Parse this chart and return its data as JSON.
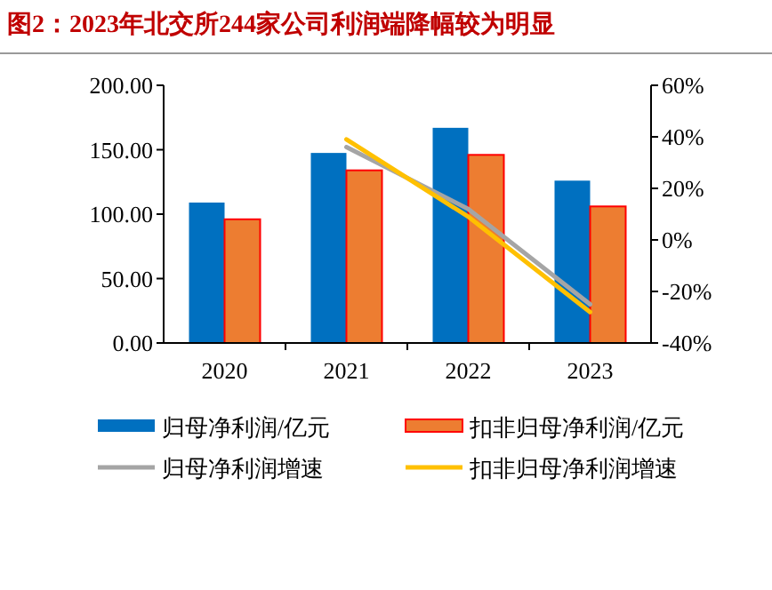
{
  "chart_data": {
    "type": "bar",
    "title": "图2：2023年北交所244家公司利润端降幅较为明显",
    "categories": [
      "2020",
      "2021",
      "2022",
      "2023"
    ],
    "series": [
      {
        "name": "归母净利润/亿元",
        "color": "#0070c0",
        "values": [
          109,
          147.5,
          167,
          126
        ]
      },
      {
        "name": "扣非归母净利润/亿元",
        "color": "#ed7d31",
        "values": [
          96,
          134,
          146,
          106
        ]
      },
      {
        "name": "归母净利润增速",
        "type": "line",
        "axis": "y2",
        "color": "#a5a5a5",
        "values": [
          null,
          36,
          12,
          -25
        ]
      },
      {
        "name": "扣非归母净利润增速",
        "type": "line",
        "axis": "y2",
        "color": "#ffc000",
        "values": [
          null,
          39,
          9,
          -28
        ]
      }
    ],
    "ylim": [
      0,
      200
    ],
    "yticks": [
      {
        "value": 0,
        "label": "0.00"
      },
      {
        "value": 50,
        "label": "50.00"
      },
      {
        "value": 100,
        "label": "100.00"
      },
      {
        "value": 150,
        "label": "150.00"
      },
      {
        "value": 200,
        "label": "200.00"
      }
    ],
    "y2lim": [
      -40,
      60
    ],
    "y2ticks": [
      {
        "value": -40,
        "label": "-40%"
      },
      {
        "value": -20,
        "label": "-20%"
      },
      {
        "value": 0,
        "label": "0%"
      },
      {
        "value": 20,
        "label": "20%"
      },
      {
        "value": 40,
        "label": "40%"
      },
      {
        "value": 60,
        "label": "60%"
      }
    ],
    "legend": "bottom",
    "grid": false
  }
}
